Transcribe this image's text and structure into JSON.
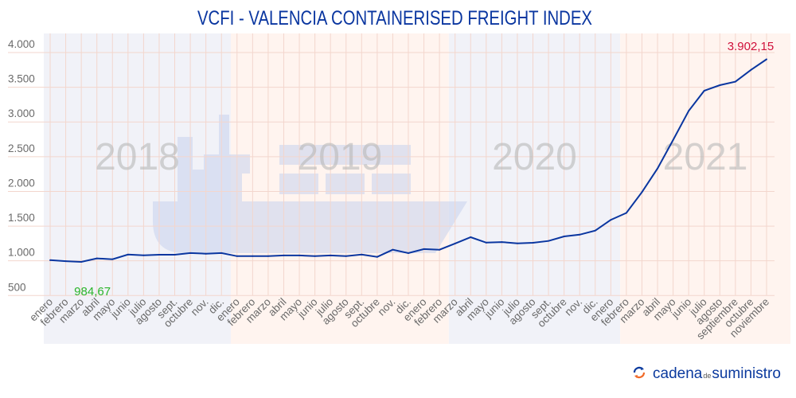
{
  "chart_data": {
    "type": "line",
    "title": "VCFI - VALENCIA CONTAINERISED FREIGHT INDEX",
    "xlabel": "",
    "ylabel": "",
    "ylim": [
      500,
      4000
    ],
    "yticks": [
      "500",
      "1.000",
      "1.500",
      "2.000",
      "2.500",
      "3.000",
      "3.500",
      "4.000"
    ],
    "ytick_values": [
      500,
      1000,
      1500,
      2000,
      2500,
      3000,
      3500,
      4000
    ],
    "grid": true,
    "legend": "none",
    "line_color": "#0a36a0",
    "categories": [
      "enero",
      "febrero",
      "marzo",
      "abril",
      "mayo",
      "junio",
      "julio",
      "agosto",
      "sept.",
      "octubre",
      "nov.",
      "dic.",
      "enero",
      "febrero",
      "marzo",
      "abril",
      "mayo",
      "junio",
      "julio",
      "agosto",
      "sept.",
      "octubre",
      "nov.",
      "dic.",
      "enero",
      "febrero",
      "marzo",
      "abril",
      "mayo",
      "junio",
      "julio",
      "agosto",
      "sept.",
      "octubre",
      "nov.",
      "dic.",
      "enero",
      "febrero",
      "marzo",
      "abril",
      "mayo",
      "junio",
      "julio",
      "agosto",
      "septiembre",
      "octubre",
      "noviembre"
    ],
    "values": [
      1010,
      995,
      984.67,
      1035,
      1023,
      1090,
      1080,
      1088,
      1088,
      1112,
      1103,
      1112,
      1068,
      1068,
      1068,
      1078,
      1078,
      1068,
      1078,
      1068,
      1090,
      1057,
      1160,
      1111,
      1170,
      1160,
      1250,
      1340,
      1262,
      1270,
      1252,
      1260,
      1287,
      1352,
      1377,
      1436,
      1590,
      1690,
      1990,
      2330,
      2740,
      3160,
      3450,
      3530,
      3580,
      3750,
      3902.15
    ],
    "periods": [
      {
        "label": "2018",
        "start": 0,
        "end": 11,
        "color": "#f1f2f8"
      },
      {
        "label": "2019",
        "start": 12,
        "end": 25,
        "color": "#fff4ef"
      },
      {
        "label": "2020",
        "start": 26,
        "end": 36,
        "color": "#f1f2f8"
      },
      {
        "label": "2021",
        "start": 37,
        "end": 46,
        "color": "#fff4ef"
      }
    ],
    "annotations": [
      {
        "text": "984,67",
        "index": 2,
        "color": "#2bb52b",
        "type": "min"
      },
      {
        "text": "3.902,15",
        "index": 46,
        "color": "#d0103a",
        "type": "max"
      }
    ]
  },
  "branding": {
    "logo_part1": "cadena",
    "logo_part2": "de",
    "logo_part3": "suministro"
  },
  "colors": {
    "title": "#0a36a0",
    "grid": "#f3d6cd",
    "ship": "#c7d1ec"
  }
}
